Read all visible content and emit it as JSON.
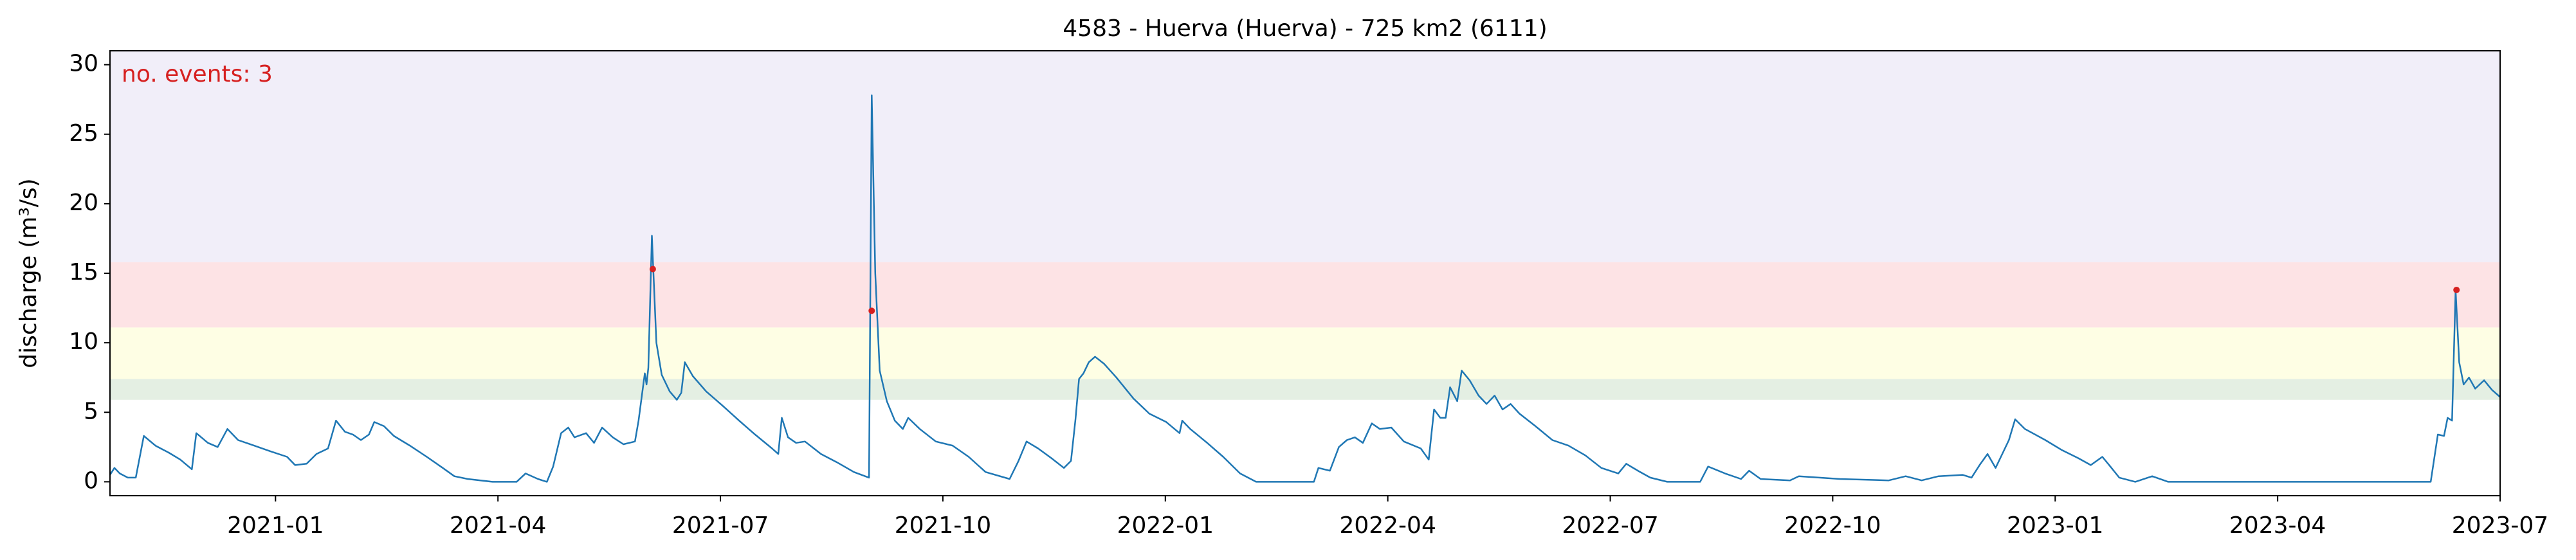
{
  "chart_data": {
    "type": "line",
    "title": "4583 - Huerva (Huerva) - 725 km2 (6111)",
    "ylabel": "discharge (m³/s)",
    "annotation": "no. events: 3",
    "annotation_color": "#d62020",
    "xlim": [
      2020.814,
      2023.5
    ],
    "ylim": [
      -1,
      31
    ],
    "xticks": [
      {
        "value": 2021.0,
        "label": "2021-01"
      },
      {
        "value": 2021.25,
        "label": "2021-04"
      },
      {
        "value": 2021.5,
        "label": "2021-07"
      },
      {
        "value": 2021.75,
        "label": "2021-10"
      },
      {
        "value": 2022.0,
        "label": "2022-01"
      },
      {
        "value": 2022.25,
        "label": "2022-04"
      },
      {
        "value": 2022.5,
        "label": "2022-07"
      },
      {
        "value": 2022.75,
        "label": "2022-10"
      },
      {
        "value": 2023.0,
        "label": "2023-01"
      },
      {
        "value": 2023.25,
        "label": "2023-04"
      },
      {
        "value": 2023.5,
        "label": "2023-07"
      }
    ],
    "yticks": [
      0,
      5,
      10,
      15,
      20,
      25,
      30
    ],
    "bands": [
      {
        "from": 5.9,
        "to": 7.4,
        "color": "#e4efe3"
      },
      {
        "from": 7.4,
        "to": 11.1,
        "color": "#fefee4"
      },
      {
        "from": 11.1,
        "to": 15.8,
        "color": "#fde3e5"
      },
      {
        "from": 15.8,
        "to": 31,
        "color": "#f1eef9"
      }
    ],
    "color": "#1f77b4",
    "x": [
      2020.814,
      2020.819,
      2020.825,
      2020.834,
      2020.843,
      2020.852,
      2020.865,
      2020.88,
      2020.893,
      2020.906,
      2020.911,
      2020.924,
      2020.935,
      2020.946,
      2020.958,
      2020.976,
      2020.994,
      2021.013,
      2021.022,
      2021.035,
      2021.046,
      2021.059,
      2021.068,
      2021.078,
      2021.087,
      2021.096,
      2021.105,
      2021.111,
      2021.122,
      2021.133,
      2021.151,
      2021.17,
      2021.188,
      2021.201,
      2021.216,
      2021.244,
      2021.271,
      2021.281,
      2021.295,
      2021.305,
      2021.312,
      2021.321,
      2021.329,
      2021.336,
      2021.349,
      2021.358,
      2021.367,
      2021.379,
      2021.391,
      2021.404,
      2021.408,
      2021.415,
      2021.417,
      2021.419,
      2021.423,
      2021.428,
      2021.434,
      2021.443,
      2021.451,
      2021.456,
      2021.46,
      2021.469,
      2021.484,
      2021.502,
      2021.521,
      2021.539,
      2021.558,
      2021.565,
      2021.569,
      2021.576,
      2021.585,
      2021.595,
      2021.613,
      2021.631,
      2021.65,
      2021.667,
      2021.67,
      2021.674,
      2021.679,
      2021.687,
      2021.696,
      2021.705,
      2021.711,
      2021.724,
      2021.742,
      2021.761,
      2021.779,
      2021.798,
      2021.825,
      2021.835,
      2021.844,
      2021.857,
      2021.872,
      2021.886,
      2021.894,
      2021.899,
      2021.903,
      2021.908,
      2021.914,
      2021.921,
      2021.931,
      2021.945,
      2021.964,
      2021.982,
      2022.001,
      2022.016,
      2022.019,
      2022.028,
      2022.047,
      2022.065,
      2022.084,
      2022.102,
      2022.167,
      2022.172,
      2022.185,
      2022.195,
      2022.204,
      2022.213,
      2022.222,
      2022.232,
      2022.241,
      2022.254,
      2022.268,
      2022.287,
      2022.296,
      2022.302,
      2022.309,
      2022.315,
      2022.32,
      2022.328,
      2022.333,
      2022.342,
      2022.352,
      2022.361,
      2022.37,
      2022.379,
      2022.388,
      2022.398,
      2022.416,
      2022.435,
      2022.453,
      2022.472,
      2022.49,
      2022.509,
      2022.518,
      2022.531,
      2022.545,
      2022.564,
      2022.601,
      2022.61,
      2022.629,
      2022.647,
      2022.656,
      2022.669,
      2022.702,
      2022.712,
      2022.758,
      2022.813,
      2022.832,
      2022.85,
      2022.869,
      2022.896,
      2022.906,
      2022.915,
      2022.924,
      2022.933,
      2022.939,
      2022.948,
      2022.955,
      2022.966,
      2022.989,
      2023.007,
      2023.026,
      2023.04,
      2023.053,
      2023.062,
      2023.072,
      2023.09,
      2023.109,
      2023.127,
      2023.422,
      2023.43,
      2023.437,
      2023.441,
      2023.446,
      2023.45,
      2023.454,
      2023.459,
      2023.465,
      2023.472,
      2023.482,
      2023.491,
      2023.5
    ],
    "values": [
      0.5,
      1.0,
      0.6,
      0.3,
      0.3,
      3.3,
      2.6,
      2.1,
      1.6,
      0.9,
      3.5,
      2.8,
      2.5,
      3.8,
      3.0,
      2.6,
      2.2,
      1.8,
      1.2,
      1.3,
      2.0,
      2.4,
      4.4,
      3.6,
      3.4,
      3.0,
      3.4,
      4.3,
      4.0,
      3.3,
      2.6,
      1.8,
      1.0,
      0.4,
      0.2,
      0.0,
      0.0,
      0.6,
      0.2,
      0.0,
      1.1,
      3.5,
      3.9,
      3.2,
      3.5,
      2.8,
      3.9,
      3.2,
      2.7,
      2.9,
      4.4,
      7.8,
      7.0,
      8.2,
      17.7,
      10.0,
      7.7,
      6.5,
      5.9,
      6.4,
      8.6,
      7.6,
      6.5,
      5.5,
      4.4,
      3.4,
      2.4,
      2.0,
      4.6,
      3.2,
      2.8,
      2.9,
      2.0,
      1.4,
      0.7,
      0.3,
      27.8,
      15.0,
      8.0,
      5.8,
      4.4,
      3.8,
      4.6,
      3.8,
      2.9,
      2.6,
      1.8,
      0.7,
      0.2,
      1.5,
      2.9,
      2.4,
      1.7,
      1.0,
      1.5,
      4.5,
      7.4,
      7.8,
      8.6,
      9.0,
      8.5,
      7.5,
      6.0,
      4.9,
      4.3,
      3.5,
      4.4,
      3.8,
      2.8,
      1.8,
      0.6,
      0.0,
      0.0,
      1.0,
      0.8,
      2.5,
      3.0,
      3.2,
      2.8,
      4.2,
      3.8,
      3.9,
      2.9,
      2.4,
      1.6,
      5.2,
      4.6,
      4.6,
      6.8,
      5.8,
      8.0,
      7.3,
      6.2,
      5.6,
      6.2,
      5.2,
      5.6,
      4.9,
      4.0,
      3.0,
      2.6,
      1.9,
      1.0,
      0.6,
      1.3,
      0.8,
      0.3,
      0.0,
      0.0,
      1.1,
      0.6,
      0.2,
      0.8,
      0.2,
      0.1,
      0.4,
      0.2,
      0.1,
      0.4,
      0.1,
      0.4,
      0.5,
      0.3,
      1.2,
      2.0,
      1.0,
      1.8,
      3.0,
      4.5,
      3.8,
      3.0,
      2.3,
      1.7,
      1.2,
      1.8,
      1.1,
      0.3,
      0.0,
      0.4,
      0.0,
      0.0,
      3.4,
      3.3,
      4.6,
      4.4,
      13.8,
      8.6,
      7.0,
      7.5,
      6.7,
      7.3,
      6.6,
      6.1
    ],
    "events": {
      "color": "#d62020",
      "x": [
        2021.424,
        2021.67,
        2023.451
      ],
      "values": [
        15.3,
        12.3,
        13.8
      ]
    }
  }
}
